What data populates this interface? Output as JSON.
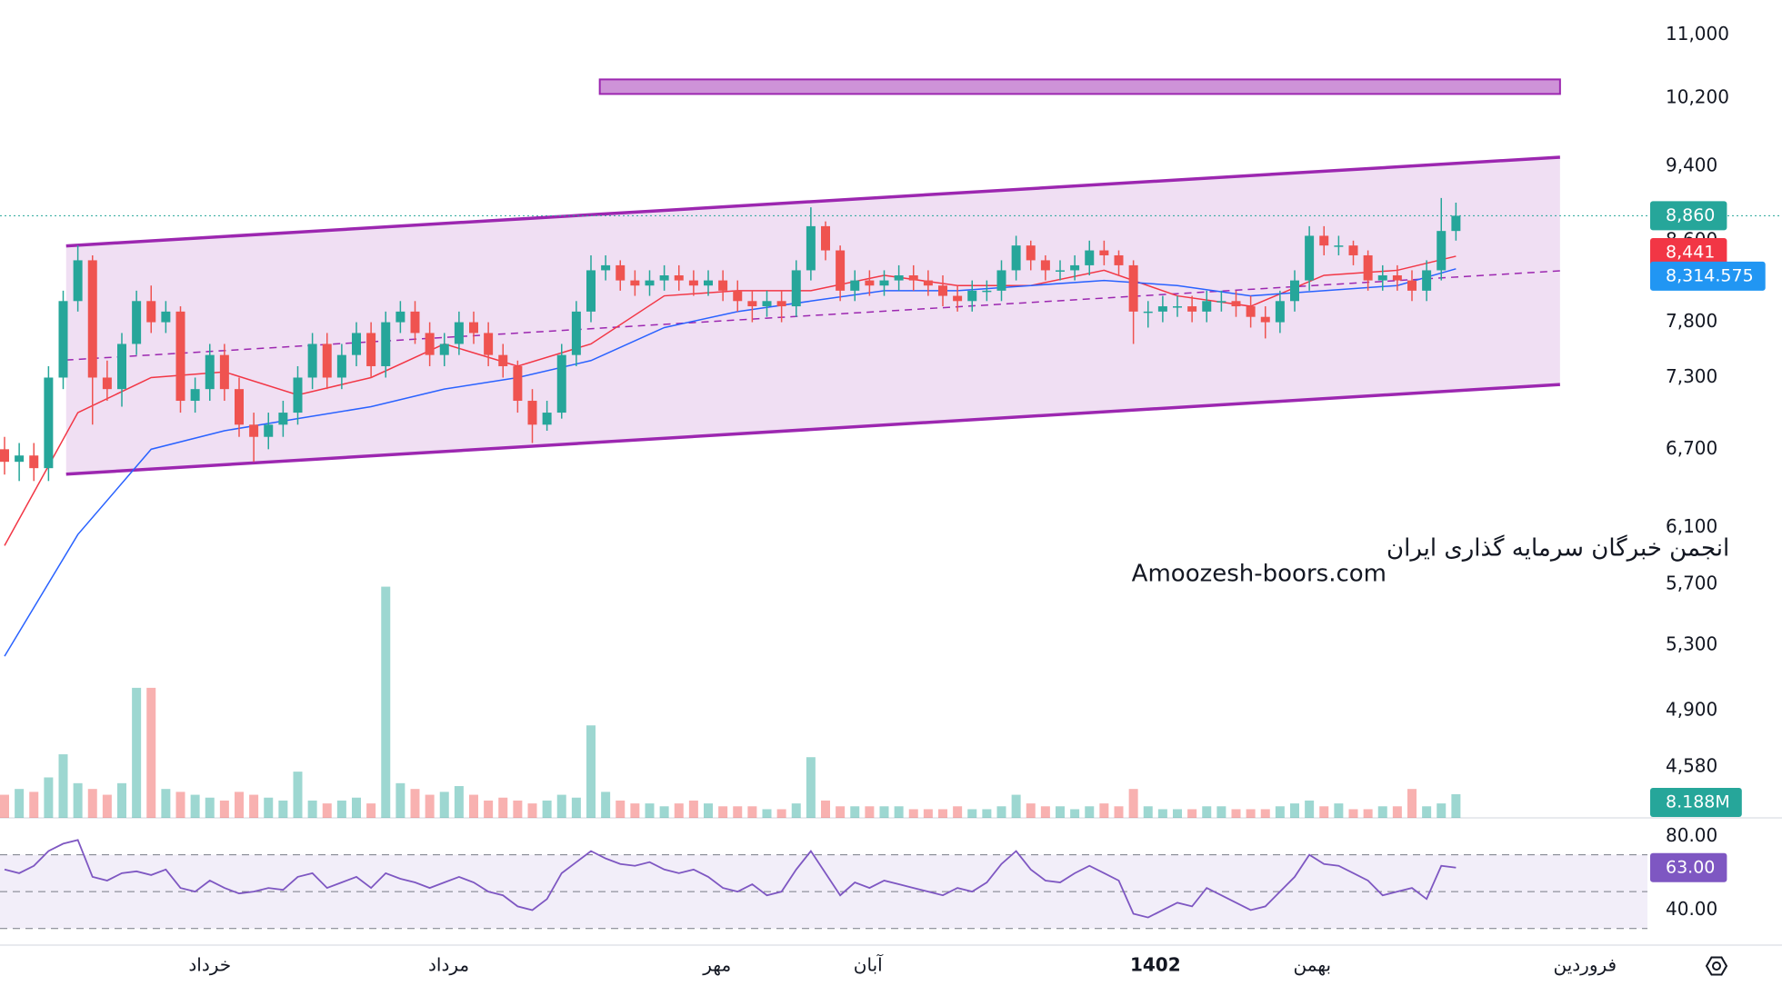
{
  "chart_data": {
    "type": "candlestick",
    "log_scale": true,
    "grid": false,
    "ylim": [
      4310,
      11470
    ],
    "yticks": [
      {
        "value": 11000,
        "label": "11,000"
      },
      {
        "value": 10200,
        "label": "10,200"
      },
      {
        "value": 9400,
        "label": "9,400"
      },
      {
        "value": 8600,
        "label": "8,600"
      },
      {
        "value": 7800,
        "label": "7,800"
      },
      {
        "value": 7300,
        "label": "7,300"
      },
      {
        "value": 6700,
        "label": "6,700"
      },
      {
        "value": 6100,
        "label": "6,100"
      },
      {
        "value": 5700,
        "label": "5,700"
      },
      {
        "value": 5300,
        "label": "5,300"
      },
      {
        "value": 4900,
        "label": "4,900"
      },
      {
        "value": 4580,
        "label": "4,580"
      }
    ],
    "xticks": [
      {
        "value": 14,
        "label": "خرداد"
      },
      {
        "value": 30.3,
        "label": "مرداد"
      },
      {
        "value": 48.6,
        "label": "مهر"
      },
      {
        "value": 58.9,
        "label": "آبان"
      },
      {
        "value": 78.5,
        "label": "1402"
      },
      {
        "value": 89.2,
        "label": "بهمن"
      },
      {
        "value": 107.8,
        "label": "فروردین"
      }
    ],
    "up_color": "#26a69a",
    "down_color": "#ef5350",
    "ohlc": {
      "open": [
        6700,
        6600,
        6650,
        6550,
        7300,
        8000,
        8400,
        7300,
        7200,
        7600,
        8000,
        7800,
        7900,
        7100,
        7200,
        7500,
        7200,
        6900,
        6800,
        6900,
        7000,
        7300,
        7600,
        7300,
        7500,
        7700,
        7400,
        7800,
        7900,
        7700,
        7500,
        7600,
        7800,
        7700,
        7500,
        7400,
        7100,
        6900,
        7000,
        7500,
        7900,
        8300,
        8350,
        8200,
        8150,
        8200,
        8250,
        8200,
        8150,
        8200,
        8100,
        8000,
        7950,
        8000,
        7950,
        8300,
        8750,
        8500,
        8100,
        8200,
        8150,
        8200,
        8250,
        8200,
        8150,
        8050,
        8000,
        8100,
        8100,
        8300,
        8550,
        8400,
        8300,
        8300,
        8350,
        8500,
        8450,
        8350,
        7900,
        7900,
        7950,
        7950,
        7900,
        8000,
        8000,
        7950,
        7850,
        7800,
        8000,
        8200,
        8650,
        8550,
        8550,
        8450,
        8200,
        8250,
        8200,
        8100,
        8300,
        8700
      ],
      "high": [
        6800,
        6750,
        6750,
        7400,
        8100,
        8550,
        8450,
        7450,
        7700,
        8100,
        8150,
        8000,
        7950,
        7300,
        7600,
        7600,
        7300,
        7000,
        7000,
        7100,
        7400,
        7700,
        7700,
        7600,
        7800,
        7800,
        7900,
        8000,
        8000,
        7800,
        7700,
        7900,
        7900,
        7800,
        7600,
        7450,
        7200,
        7100,
        7600,
        8000,
        8450,
        8450,
        8400,
        8300,
        8300,
        8350,
        8350,
        8300,
        8300,
        8300,
        8200,
        8100,
        8100,
        8100,
        8400,
        8950,
        8800,
        8550,
        8300,
        8300,
        8300,
        8350,
        8350,
        8300,
        8250,
        8150,
        8200,
        8200,
        8400,
        8650,
        8600,
        8450,
        8400,
        8450,
        8600,
        8600,
        8500,
        8400,
        8000,
        8050,
        8050,
        8050,
        8100,
        8100,
        8100,
        8050,
        7950,
        8100,
        8300,
        8750,
        8750,
        8650,
        8600,
        8500,
        8350,
        8350,
        8300,
        8400,
        9050,
        9000
      ],
      "low": [
        6500,
        6450,
        6450,
        6450,
        7200,
        7900,
        6900,
        7100,
        7050,
        7500,
        7700,
        7700,
        7000,
        7000,
        7100,
        7100,
        6800,
        6600,
        6700,
        6800,
        6900,
        7200,
        7200,
        7200,
        7400,
        7300,
        7300,
        7700,
        7600,
        7400,
        7400,
        7500,
        7600,
        7400,
        7300,
        7000,
        6750,
        6850,
        6950,
        7400,
        7800,
        8200,
        8100,
        8050,
        8050,
        8100,
        8100,
        8050,
        8050,
        8000,
        7900,
        7800,
        7850,
        7800,
        7850,
        8200,
        8400,
        8000,
        8000,
        8050,
        8050,
        8100,
        8100,
        8050,
        7950,
        7900,
        7900,
        8000,
        8000,
        8200,
        8300,
        8200,
        8200,
        8200,
        8250,
        8350,
        8250,
        7600,
        7750,
        7800,
        7850,
        7800,
        7800,
        7900,
        7850,
        7750,
        7650,
        7700,
        7900,
        8100,
        8450,
        8450,
        8350,
        8100,
        8100,
        8100,
        8000,
        8000,
        8200,
        8600
      ],
      "close": [
        6600,
        6650,
        6550,
        7300,
        8000,
        8400,
        7300,
        7200,
        7600,
        8000,
        7800,
        7900,
        7100,
        7200,
        7500,
        7200,
        6900,
        6800,
        6900,
        7000,
        7300,
        7600,
        7300,
        7500,
        7700,
        7400,
        7800,
        7900,
        7700,
        7500,
        7600,
        7800,
        7700,
        7500,
        7400,
        7100,
        6900,
        7000,
        7500,
        7900,
        8300,
        8350,
        8200,
        8150,
        8200,
        8250,
        8200,
        8150,
        8200,
        8100,
        8000,
        7950,
        8000,
        7950,
        8300,
        8750,
        8500,
        8100,
        8200,
        8150,
        8200,
        8250,
        8200,
        8150,
        8050,
        8000,
        8100,
        8100,
        8300,
        8550,
        8400,
        8300,
        8300,
        8350,
        8500,
        8450,
        8350,
        7900,
        7900,
        7950,
        7950,
        7900,
        8000,
        8000,
        7950,
        7850,
        7800,
        8000,
        8200,
        8650,
        8550,
        8550,
        8450,
        8200,
        8250,
        8200,
        8100,
        8300,
        8700,
        8860
      ],
      "last_label": "8,860"
    },
    "moving_averages": [
      {
        "color": "#f23645",
        "x": [
          0,
          5,
          10,
          15,
          20,
          25,
          30,
          35,
          40,
          45,
          50,
          55,
          60,
          65,
          70,
          75,
          80,
          85,
          90,
          95,
          99
        ],
        "values": [
          5970,
          7000,
          7300,
          7350,
          7150,
          7300,
          7600,
          7400,
          7600,
          8050,
          8100,
          8100,
          8250,
          8150,
          8150,
          8300,
          8050,
          7950,
          8250,
          8300,
          8441
        ],
        "last_label": "8,441"
      },
      {
        "color": "#2962ff",
        "x": [
          0,
          5,
          10,
          15,
          20,
          25,
          30,
          35,
          40,
          45,
          50,
          55,
          60,
          65,
          70,
          75,
          80,
          85,
          90,
          95,
          99
        ],
        "values": [
          5230,
          6050,
          6700,
          6850,
          6950,
          7050,
          7200,
          7300,
          7450,
          7750,
          7900,
          8000,
          8100,
          8100,
          8150,
          8200,
          8150,
          8050,
          8100,
          8150,
          8314.575
        ],
        "last_label": "8,314.575",
        "label_color": "#2196f3"
      }
    ],
    "volume": {
      "ylim": [
        0,
        283
      ],
      "values": [
        8,
        10,
        9,
        14,
        22,
        12,
        10,
        8,
        12,
        45,
        45,
        10,
        9,
        8,
        7,
        6,
        9,
        8,
        7,
        6,
        16,
        6,
        5,
        6,
        7,
        5,
        80,
        12,
        10,
        8,
        9,
        11,
        8,
        6,
        7,
        6,
        5,
        6,
        8,
        7,
        32,
        9,
        6,
        5,
        5,
        4,
        5,
        6,
        5,
        4,
        4,
        4,
        3,
        3,
        5,
        21,
        6,
        4,
        4,
        4,
        4,
        4,
        3,
        3,
        3,
        4,
        3,
        3,
        4,
        8,
        5,
        4,
        4,
        3,
        4,
        5,
        4,
        10,
        4,
        3,
        3,
        3,
        4,
        4,
        3,
        3,
        3,
        4,
        5,
        6,
        4,
        5,
        3,
        3,
        4,
        4,
        10,
        4,
        5,
        8.188
      ],
      "last_label": "8.188M"
    },
    "channel": {
      "x": [
        4.2,
        106.1
      ],
      "upper": [
        8546,
        9503
      ],
      "lower": [
        6503,
        7240
      ],
      "color": "#9c27b0"
    },
    "zone": {
      "x": [
        40.6,
        106.1
      ],
      "ylim": [
        10250,
        10430
      ],
      "color": "#ce93d8"
    },
    "rsi": {
      "color": "#7e57c2",
      "ylim": [
        22,
        89
      ],
      "yticks": [
        {
          "value": 80,
          "label": "80.00"
        },
        {
          "value": 40,
          "label": "40.00"
        }
      ],
      "bands": [
        70,
        50,
        30
      ],
      "values": [
        62,
        60,
        64,
        72,
        76,
        78,
        58,
        56,
        60,
        61,
        59,
        62,
        52,
        50,
        56,
        52,
        49,
        50,
        52,
        51,
        58,
        60,
        52,
        55,
        58,
        52,
        60,
        57,
        55,
        52,
        55,
        58,
        55,
        50,
        48,
        42,
        40,
        46,
        60,
        66,
        72,
        68,
        65,
        64,
        66,
        62,
        60,
        62,
        58,
        52,
        50,
        54,
        48,
        50,
        62,
        72,
        60,
        48,
        55,
        52,
        56,
        54,
        52,
        50,
        48,
        52,
        50,
        55,
        65,
        72,
        62,
        56,
        55,
        60,
        64,
        60,
        56,
        38,
        36,
        40,
        44,
        42,
        52,
        48,
        44,
        40,
        42,
        50,
        58,
        70,
        65,
        64,
        60,
        56,
        48,
        50,
        52,
        46,
        64,
        63
      ],
      "last_label": "63.00"
    },
    "annotations": [
      "انجمن خبرگان سرمایه گذاری ایران",
      "Amoozesh-boors.com"
    ]
  }
}
